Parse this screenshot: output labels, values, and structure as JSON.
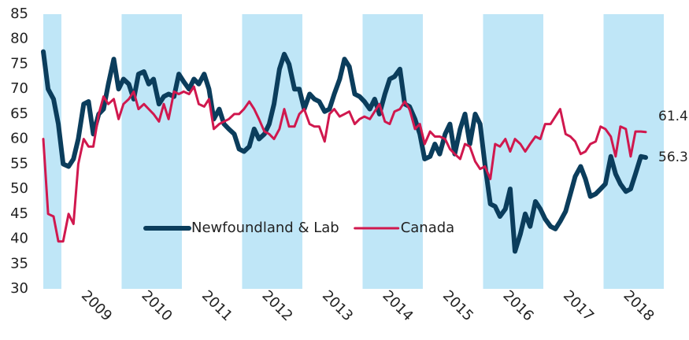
{
  "chart_data": {
    "type": "line",
    "x": [
      2008.7,
      2008.78,
      2008.87,
      2008.95,
      2009.03,
      2009.12,
      2009.2,
      2009.28,
      2009.37,
      2009.45,
      2009.53,
      2009.62,
      2009.7,
      2009.78,
      2009.87,
      2009.95,
      2010.03,
      2010.12,
      2010.2,
      2010.28,
      2010.37,
      2010.45,
      2010.53,
      2010.62,
      2010.7,
      2010.78,
      2010.87,
      2010.95,
      2011.03,
      2011.12,
      2011.2,
      2011.28,
      2011.37,
      2011.45,
      2011.53,
      2011.62,
      2011.7,
      2011.78,
      2011.87,
      2011.95,
      2012.03,
      2012.12,
      2012.2,
      2012.28,
      2012.37,
      2012.45,
      2012.53,
      2012.62,
      2012.7,
      2012.78,
      2012.87,
      2012.95,
      2013.03,
      2013.12,
      2013.2,
      2013.28,
      2013.37,
      2013.45,
      2013.53,
      2013.62,
      2013.7,
      2013.78,
      2013.87,
      2013.95,
      2014.03,
      2014.12,
      2014.2,
      2014.28,
      2014.37,
      2014.45,
      2014.53,
      2014.62,
      2014.7,
      2014.78,
      2014.87,
      2014.95,
      2015.03,
      2015.12,
      2015.2,
      2015.28,
      2015.37,
      2015.45,
      2015.53,
      2015.62,
      2015.7,
      2015.78,
      2015.87,
      2015.95,
      2016.03,
      2016.12,
      2016.2,
      2016.28,
      2016.37,
      2016.45,
      2016.53,
      2016.62,
      2016.7,
      2016.78,
      2016.87,
      2016.95,
      2017.03,
      2017.12,
      2017.2,
      2017.28,
      2017.37,
      2017.45,
      2017.53,
      2017.62,
      2017.7,
      2017.78,
      2017.87,
      2017.95,
      2018.03,
      2018.12,
      2018.2,
      2018.28,
      2018.37,
      2018.45,
      2018.53,
      2018.62,
      2018.7
    ],
    "series": [
      {
        "name": "Newfoundland & Lab",
        "color": "#0b3d5c",
        "values": [
          77.5,
          70,
          68,
          63,
          55,
          54.5,
          56,
          60,
          67,
          67.5,
          61,
          65,
          66,
          71,
          76,
          70,
          72,
          71,
          68,
          73,
          73.5,
          71,
          72,
          67,
          68.5,
          69,
          68.5,
          73,
          71.5,
          70,
          72,
          71,
          73,
          70,
          64,
          66,
          63,
          62,
          61,
          58,
          57.5,
          58.5,
          62,
          60,
          61,
          63,
          67,
          74,
          77,
          75,
          70,
          70,
          66,
          69,
          68,
          67.5,
          65.5,
          66,
          69,
          72,
          76,
          74.5,
          69,
          68.5,
          67.5,
          66,
          68,
          65,
          69,
          72,
          72.5,
          74,
          67,
          66.5,
          64,
          61,
          56,
          56.5,
          59,
          57,
          61,
          63,
          57,
          62,
          65,
          59,
          65,
          63,
          55,
          47,
          46.5,
          44.5,
          46,
          50,
          37.5,
          41,
          45,
          42.5,
          47.5,
          46,
          44,
          42.5,
          42,
          43.5,
          45.5,
          49,
          52.5,
          54.5,
          52,
          48.5,
          49,
          50,
          51,
          56.5,
          53,
          51,
          49.5,
          50,
          53,
          56.5,
          56.3
        ]
      },
      {
        "name": "Canada",
        "color": "#d0184e",
        "values": [
          60,
          45,
          44.5,
          39.5,
          39.5,
          45,
          43,
          55,
          60,
          58.5,
          58.5,
          65,
          68.5,
          67,
          68,
          64,
          67,
          68,
          69.5,
          66,
          67,
          66,
          65,
          63.5,
          67,
          64,
          69.5,
          69,
          69.5,
          69,
          70.5,
          67,
          66.5,
          68,
          62,
          63,
          63.5,
          64,
          65,
          65,
          66,
          67.5,
          66,
          64,
          61.5,
          61,
          60,
          62,
          66,
          62.5,
          62.5,
          65,
          66,
          63,
          62.5,
          62.5,
          59.5,
          65,
          66,
          64.5,
          65,
          65.5,
          63,
          64,
          64.5,
          64,
          65.5,
          67,
          63.5,
          63,
          65.5,
          66,
          67.5,
          66,
          62,
          63,
          59,
          61.5,
          60.5,
          60.5,
          60,
          58,
          57,
          56,
          59,
          58.5,
          55.5,
          54,
          54.5,
          52,
          59,
          58.5,
          60,
          57.5,
          60,
          59,
          57.5,
          59,
          60.5,
          60,
          63,
          63,
          64.5,
          66,
          61,
          60.5,
          59.5,
          57,
          57.5,
          59,
          59.5,
          62.5,
          62,
          60.5,
          56.5,
          62.5,
          62,
          56.5,
          61.5,
          61.5,
          61.4
        ]
      }
    ],
    "xlim": [
      2008.7,
      2019
    ],
    "xticks": [
      {
        "value": 2009.5,
        "label": "2009"
      },
      {
        "value": 2010.5,
        "label": "2010"
      },
      {
        "value": 2011.5,
        "label": "2011"
      },
      {
        "value": 2012.5,
        "label": "2012"
      },
      {
        "value": 2013.5,
        "label": "2013"
      },
      {
        "value": 2014.5,
        "label": "2014"
      },
      {
        "value": 2015.5,
        "label": "2015"
      },
      {
        "value": 2016.5,
        "label": "2016"
      },
      {
        "value": 2017.5,
        "label": "2017"
      },
      {
        "value": 2018.5,
        "label": "2018"
      }
    ],
    "ylim": [
      30,
      85
    ],
    "yticks": [
      30,
      35,
      40,
      45,
      50,
      55,
      60,
      65,
      70,
      75,
      80,
      85
    ],
    "shading": true,
    "shading_color": "#bfe6f7",
    "legend": "lower center",
    "end_labels": true
  }
}
